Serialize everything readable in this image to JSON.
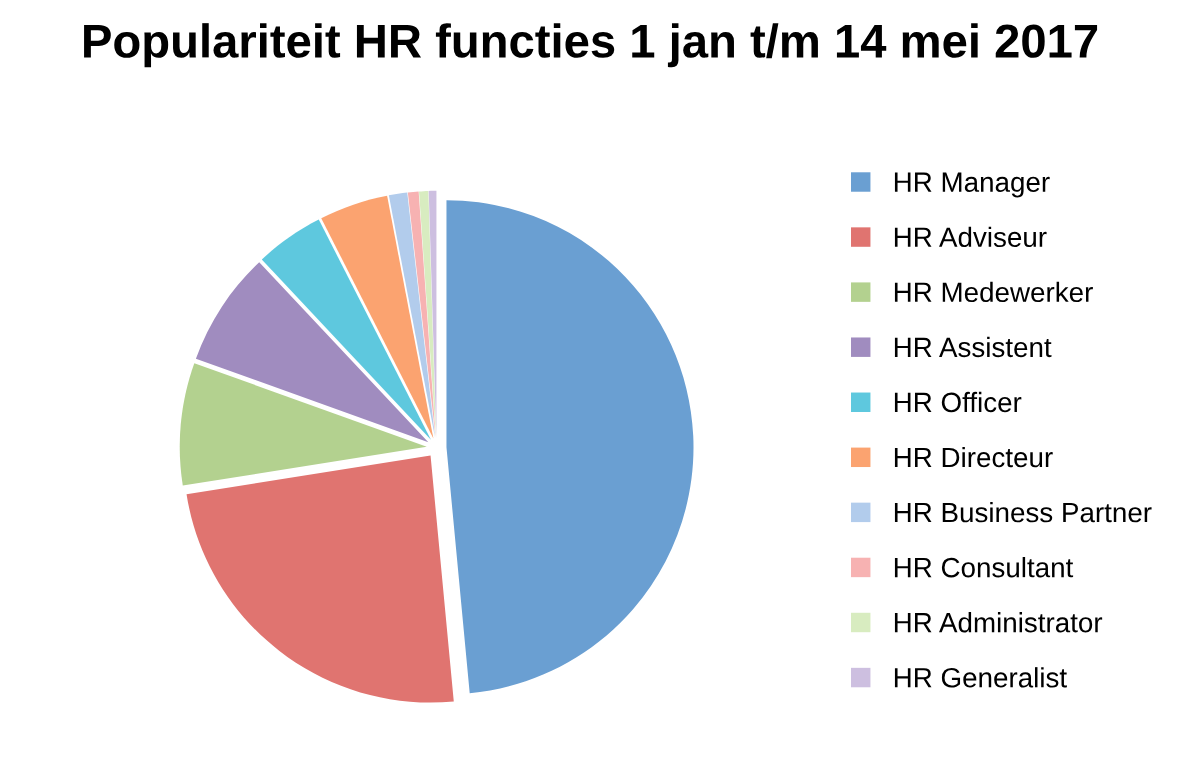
{
  "chart_data": {
    "type": "pie",
    "title": "Populariteit HR functies 1 jan t/m 14 mei 2017",
    "categories": [
      "HR Manager",
      "HR Adviseur",
      "HR Medewerker",
      "HR Assistent",
      "HR Officer",
      "HR Directeur",
      "HR Business Partner",
      "HR Consultant",
      "HR Administrator",
      "HR Generalist"
    ],
    "values": [
      48.5,
      24,
      8,
      7.5,
      4.5,
      4.5,
      1.2,
      0.7,
      0.6,
      0.5
    ],
    "colors": [
      "#6a9fd2",
      "#e07470",
      "#b3d18f",
      "#a08cbf",
      "#5ec8de",
      "#fba370",
      "#b2ccec",
      "#f7b2b2",
      "#d8ecc0",
      "#cdbfe0"
    ],
    "legend": "right"
  }
}
